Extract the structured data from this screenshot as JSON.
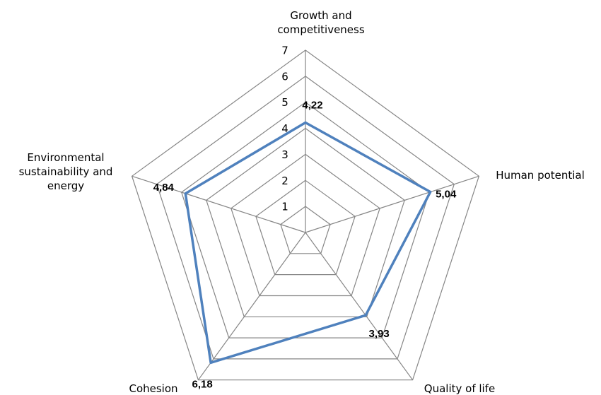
{
  "chart_data": {
    "type": "radar",
    "categories": [
      [
        "Growth and",
        "competitiveness"
      ],
      [
        "Human potential"
      ],
      [
        "Quality of life"
      ],
      [
        "Cohesion"
      ],
      [
        "Environmental",
        "sustainability and",
        "energy"
      ]
    ],
    "series": [
      {
        "values": [
          4.22,
          5.04,
          3.93,
          6.18,
          4.84
        ]
      }
    ],
    "data_labels": [
      "4,22",
      "5,04",
      "3,93",
      "6,18",
      "4,84"
    ],
    "radial_ticks": [
      1,
      2,
      3,
      4,
      5,
      6,
      7
    ],
    "range": [
      0,
      7
    ],
    "grid": true,
    "legend": "none",
    "colors": {
      "series": "#4f81bd",
      "grid": "#868686"
    }
  }
}
